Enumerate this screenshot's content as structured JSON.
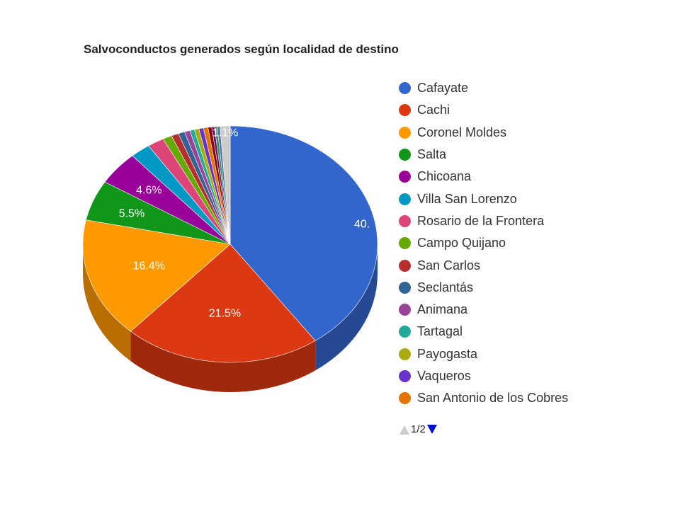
{
  "chart_data": {
    "type": "pie",
    "title": "Salvoconductos generados según localidad de destino",
    "slices": [
      {
        "label": "Cafayate",
        "value": 40.0,
        "color": "#3366cc",
        "data_label": "40."
      },
      {
        "label": "Cachi",
        "value": 21.5,
        "color": "#dc3912",
        "data_label": "21.5%"
      },
      {
        "label": "Coronel Moldes",
        "value": 16.4,
        "color": "#ff9900",
        "data_label": "16.4%"
      },
      {
        "label": "Salta",
        "value": 5.5,
        "color": "#109618",
        "data_label": "5.5%"
      },
      {
        "label": "Chicoana",
        "value": 4.6,
        "color": "#990099",
        "data_label": "4.6%"
      },
      {
        "label": "Villa San Lorenzo",
        "value": 2.2,
        "color": "#0099c6",
        "data_label": ""
      },
      {
        "label": "Rosario de la Frontera",
        "value": 1.8,
        "color": "#dd4477",
        "data_label": ""
      },
      {
        "label": "Campo Quijano",
        "value": 1.0,
        "color": "#66aa00",
        "data_label": ""
      },
      {
        "label": "San Carlos",
        "value": 0.8,
        "color": "#b82e2e",
        "data_label": ""
      },
      {
        "label": "Seclantás",
        "value": 0.7,
        "color": "#316395",
        "data_label": ""
      },
      {
        "label": "Animana",
        "value": 0.6,
        "color": "#994499",
        "data_label": ""
      },
      {
        "label": "Tartagal",
        "value": 0.5,
        "color": "#22aa99",
        "data_label": ""
      },
      {
        "label": "Payogasta",
        "value": 0.5,
        "color": "#aaaa11",
        "data_label": ""
      },
      {
        "label": "Vaqueros",
        "value": 0.5,
        "color": "#6633cc",
        "data_label": ""
      },
      {
        "label": "San Antonio de los Cobres",
        "value": 0.5,
        "color": "#e67300",
        "data_label": ""
      },
      {
        "label": "",
        "value": 0.4,
        "color": "#8b0707",
        "data_label": ""
      },
      {
        "label": "",
        "value": 0.3,
        "color": "#651067",
        "data_label": ""
      },
      {
        "label": "",
        "value": 0.3,
        "color": "#329262",
        "data_label": ""
      },
      {
        "label": "",
        "value": 0.3,
        "color": "#5574a6",
        "data_label": ""
      },
      {
        "label": "",
        "value": 1.1,
        "color": "#cccccc",
        "data_label": "1.1%"
      }
    ],
    "legend_position": "right",
    "three_d": true
  },
  "legend": {
    "items": [
      {
        "label": "Cafayate",
        "color": "#3366cc"
      },
      {
        "label": "Cachi",
        "color": "#dc3912"
      },
      {
        "label": "Coronel Moldes",
        "color": "#ff9900"
      },
      {
        "label": "Salta",
        "color": "#109618"
      },
      {
        "label": "Chicoana",
        "color": "#990099"
      },
      {
        "label": "Villa San Lorenzo",
        "color": "#0099c6"
      },
      {
        "label": "Rosario de la Frontera",
        "color": "#dd4477"
      },
      {
        "label": "Campo Quijano",
        "color": "#66aa00"
      },
      {
        "label": "San Carlos",
        "color": "#b82e2e"
      },
      {
        "label": "Seclantás",
        "color": "#316395"
      },
      {
        "label": "Animana",
        "color": "#994499"
      },
      {
        "label": "Tartagal",
        "color": "#22aa99"
      },
      {
        "label": "Payogasta",
        "color": "#aaaa11"
      },
      {
        "label": "Vaqueros",
        "color": "#6633cc"
      },
      {
        "label": "San Antonio de los Cobres",
        "color": "#e67300"
      }
    ]
  },
  "pager": {
    "text": "1/2",
    "prev_icon": "triangle-up-icon",
    "next_icon": "triangle-down-icon",
    "prev_color": "#cccccc",
    "next_color": "#0011cc"
  }
}
